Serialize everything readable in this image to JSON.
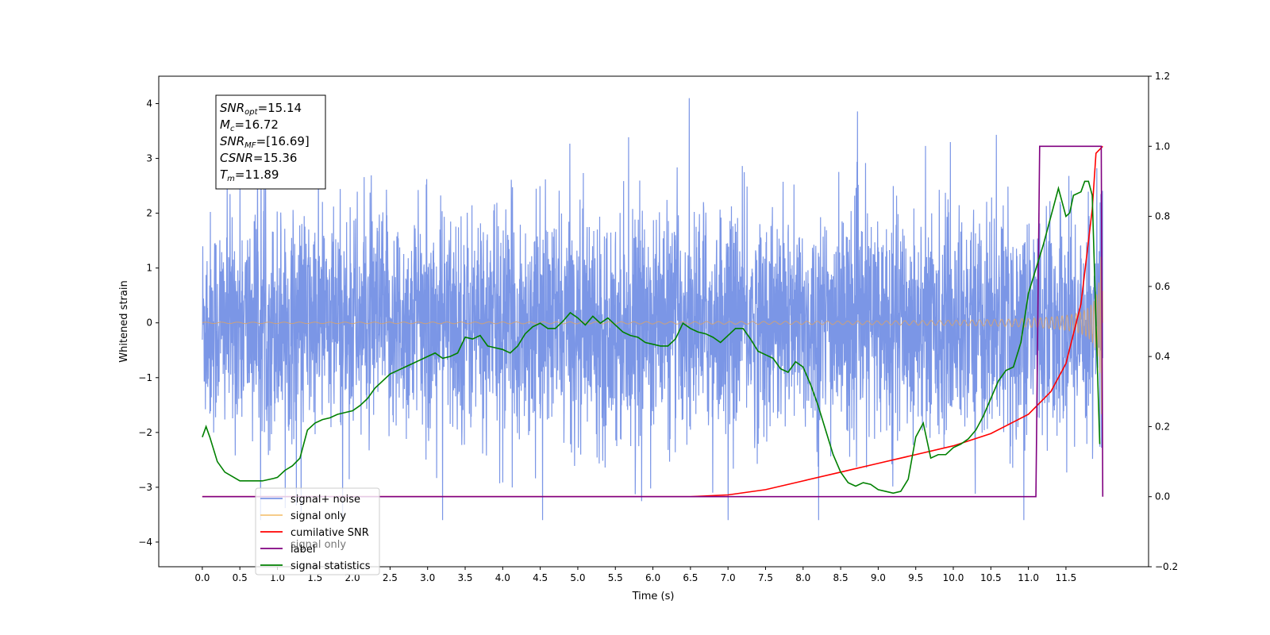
{
  "chart_data": {
    "type": "line",
    "xlabel": "Time (s)",
    "ylabel": "Whitened strain",
    "xlim": [
      -0.58,
      12.6
    ],
    "ylim": [
      -4.45,
      4.5
    ],
    "y2lim": [
      -0.2,
      1.2
    ],
    "x_ticks": [
      "0.0",
      "0.5",
      "1.0",
      "1.5",
      "2.0",
      "2.5",
      "3.0",
      "3.5",
      "4.0",
      "4.5",
      "5.0",
      "5.5",
      "6.0",
      "6.5",
      "7.0",
      "7.5",
      "8.0",
      "8.5",
      "9.0",
      "9.5",
      "10.0",
      "10.5",
      "11.0",
      "11.5"
    ],
    "y_ticks": [
      "4",
      "3",
      "2",
      "1",
      "0",
      "−1",
      "−2",
      "−3",
      "−4"
    ],
    "y2_ticks": [
      "1.2",
      "1.0",
      "0.8",
      "0.6",
      "0.4",
      "0.2",
      "0.0",
      "−0.2"
    ],
    "annotation": [
      {
        "main": "SNR",
        "sub": "opt",
        "value": "=15.14"
      },
      {
        "main": "M",
        "sub": "c",
        "value": "=16.72"
      },
      {
        "main": "SNR",
        "sub": "MF",
        "value": "=[16.69]"
      },
      {
        "main": "CSNR",
        "sub": "",
        "value": "=15.36"
      },
      {
        "main": "T",
        "sub": "m",
        "value": "=11.89"
      }
    ],
    "legend": {
      "placement": "lower-left",
      "entries": [
        {
          "label": "signal+ noise",
          "color": "#7b96e6"
        },
        {
          "label": "signal only",
          "color": "#f5c47a"
        },
        {
          "label": "cumilative SNR",
          "color": "#ff0000"
        },
        {
          "label": "label",
          "color": "#800080"
        },
        {
          "label": "signal statistics",
          "color": "#008000"
        }
      ],
      "hidden_label": "signal only"
    },
    "series": [
      {
        "name": "signal+ noise",
        "axis": "left",
        "color": "#7b96e6",
        "description": "dense noise trace",
        "t_range": [
          0,
          11.99
        ],
        "amplitude_range": [
          -3.6,
          4.1
        ]
      },
      {
        "name": "signal only",
        "axis": "left",
        "color": "#d9a36b",
        "chirp_start": 6.5,
        "t_end": 11.99,
        "peak_amp": 2.0
      },
      {
        "name": "cumilative SNR",
        "axis": "right",
        "x": [
          0,
          6.5,
          7.0,
          7.5,
          8.0,
          8.5,
          9.0,
          9.5,
          10.0,
          10.5,
          11.0,
          11.3,
          11.5,
          11.7,
          11.85,
          11.9,
          11.99
        ],
        "values": [
          0,
          0.0,
          0.005,
          0.02,
          0.045,
          0.07,
          0.095,
          0.12,
          0.145,
          0.18,
          0.235,
          0.3,
          0.38,
          0.55,
          0.82,
          0.98,
          1.0
        ]
      },
      {
        "name": "label",
        "axis": "right",
        "x": [
          0,
          11.1,
          11.15,
          11.97,
          11.99
        ],
        "values": [
          0,
          0,
          1,
          1,
          0
        ]
      },
      {
        "name": "signal statistics",
        "axis": "right",
        "x": [
          0,
          0.05,
          0.1,
          0.2,
          0.3,
          0.5,
          0.7,
          0.8,
          0.95,
          1.0,
          1.1,
          1.2,
          1.3,
          1.4,
          1.5,
          1.6,
          1.7,
          1.8,
          1.9,
          2.0,
          2.1,
          2.2,
          2.3,
          2.4,
          2.5,
          2.6,
          2.7,
          2.8,
          2.9,
          3.0,
          3.1,
          3.2,
          3.3,
          3.4,
          3.5,
          3.6,
          3.7,
          3.8,
          3.9,
          4.0,
          4.1,
          4.2,
          4.3,
          4.4,
          4.5,
          4.6,
          4.7,
          4.8,
          4.9,
          5.0,
          5.1,
          5.2,
          5.3,
          5.4,
          5.5,
          5.6,
          5.7,
          5.8,
          5.9,
          6.0,
          6.1,
          6.2,
          6.3,
          6.4,
          6.5,
          6.6,
          6.7,
          6.8,
          6.9,
          7.0,
          7.1,
          7.2,
          7.3,
          7.4,
          7.5,
          7.6,
          7.7,
          7.8,
          7.9,
          8.0,
          8.1,
          8.2,
          8.3,
          8.4,
          8.5,
          8.6,
          8.7,
          8.8,
          8.9,
          9.0,
          9.1,
          9.2,
          9.3,
          9.4,
          9.5,
          9.6,
          9.7,
          9.8,
          9.9,
          10.0,
          10.1,
          10.2,
          10.3,
          10.4,
          10.5,
          10.6,
          10.7,
          10.8,
          10.9,
          11.0,
          11.1,
          11.2,
          11.3,
          11.4,
          11.5,
          11.55,
          11.6,
          11.7,
          11.75,
          11.8,
          11.85,
          11.9,
          11.95
        ],
        "values": [
          0.17,
          0.2,
          0.17,
          0.1,
          0.07,
          0.045,
          0.045,
          0.045,
          0.052,
          0.055,
          0.075,
          0.088,
          0.11,
          0.19,
          0.21,
          0.22,
          0.225,
          0.235,
          0.24,
          0.245,
          0.26,
          0.28,
          0.31,
          0.33,
          0.35,
          0.36,
          0.37,
          0.38,
          0.39,
          0.4,
          0.41,
          0.395,
          0.4,
          0.41,
          0.455,
          0.45,
          0.46,
          0.43,
          0.425,
          0.42,
          0.41,
          0.43,
          0.465,
          0.485,
          0.495,
          0.48,
          0.48,
          0.5,
          0.525,
          0.51,
          0.49,
          0.515,
          0.495,
          0.51,
          0.49,
          0.47,
          0.46,
          0.455,
          0.44,
          0.435,
          0.43,
          0.43,
          0.45,
          0.495,
          0.48,
          0.47,
          0.465,
          0.455,
          0.44,
          0.46,
          0.48,
          0.48,
          0.45,
          0.415,
          0.405,
          0.395,
          0.365,
          0.355,
          0.385,
          0.37,
          0.32,
          0.26,
          0.19,
          0.12,
          0.07,
          0.04,
          0.03,
          0.04,
          0.035,
          0.02,
          0.015,
          0.01,
          0.015,
          0.05,
          0.17,
          0.21,
          0.11,
          0.12,
          0.12,
          0.14,
          0.15,
          0.165,
          0.19,
          0.23,
          0.28,
          0.33,
          0.36,
          0.37,
          0.44,
          0.58,
          0.65,
          0.72,
          0.8,
          0.88,
          0.8,
          0.81,
          0.86,
          0.87,
          0.9,
          0.9,
          0.86,
          0.5,
          0.15
        ]
      }
    ]
  }
}
